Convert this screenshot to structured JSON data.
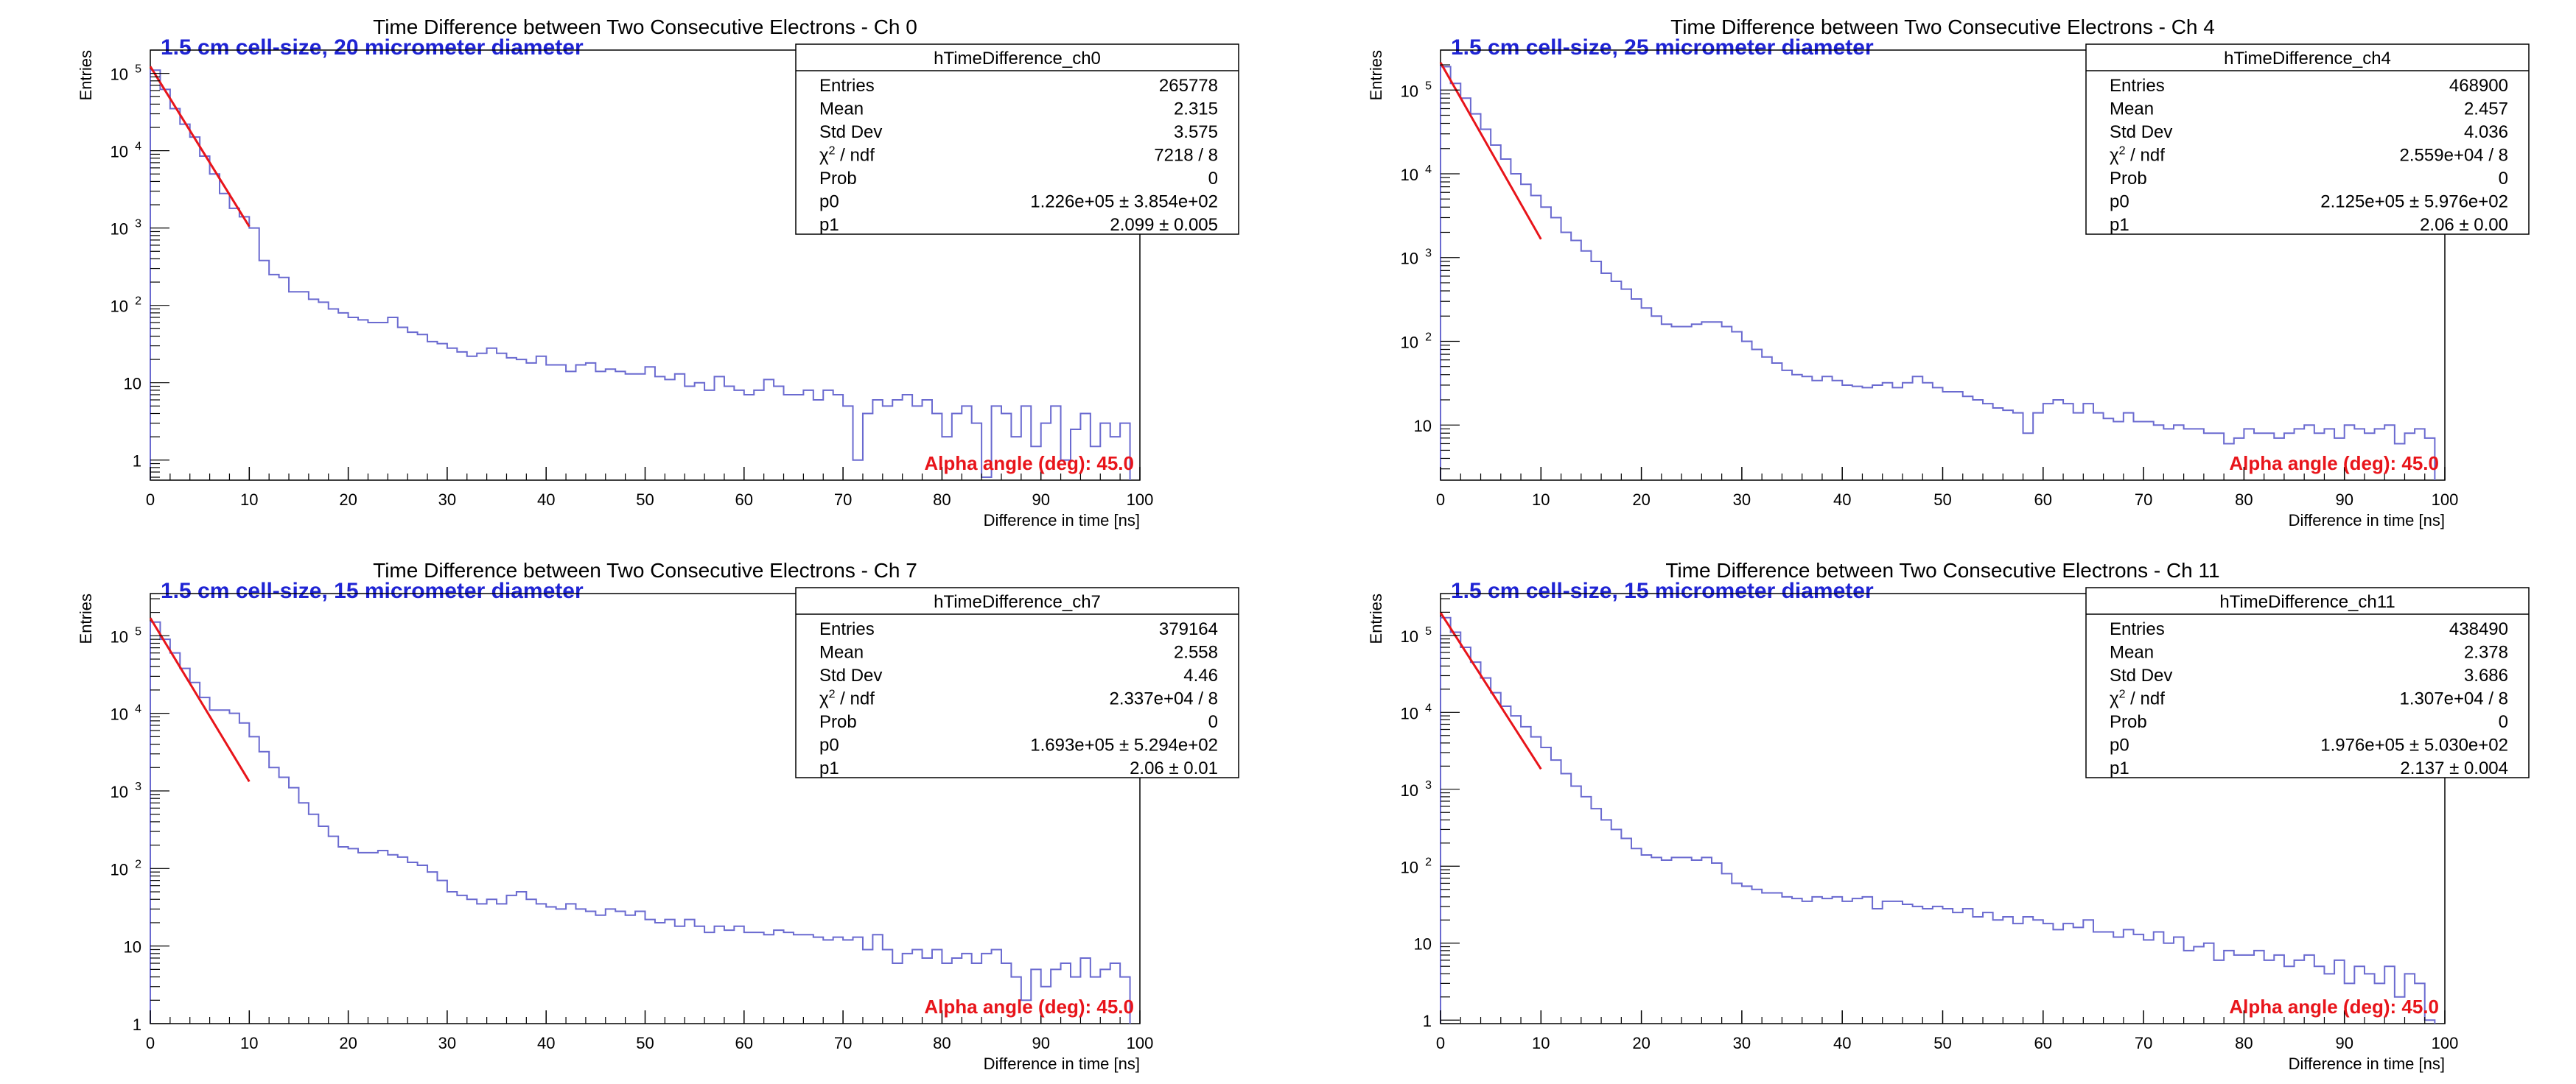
{
  "chart_data": [
    {
      "type": "histogram",
      "title": "Time Difference between Two Consecutive Electrons - Ch 0",
      "subtitle": "1.5 cm cell-size, 20 micrometer diameter",
      "xlabel": "Difference in time [ns]",
      "ylabel": "Entries",
      "xlim": [
        0,
        100
      ],
      "ylim": [
        0.55,
        200000
      ],
      "yscale": "log",
      "x_ticks": [
        "0",
        "10",
        "20",
        "30",
        "40",
        "50",
        "60",
        "70",
        "80",
        "90",
        "100"
      ],
      "y_ticks": [
        {
          "v": 1,
          "label": "1"
        },
        {
          "v": 10,
          "label": "10"
        },
        {
          "v": 100,
          "label": "10",
          "exp": "2"
        },
        {
          "v": 1000,
          "label": "10",
          "exp": "3"
        },
        {
          "v": 10000,
          "label": "10",
          "exp": "4"
        },
        {
          "v": 100000,
          "label": "10",
          "exp": "5"
        }
      ],
      "bin_width": 1,
      "values": [
        110000,
        62000,
        35000,
        22000,
        15000,
        8500,
        5000,
        2800,
        1800,
        1400,
        1000,
        380,
        250,
        230,
        150,
        150,
        120,
        110,
        90,
        80,
        70,
        65,
        60,
        60,
        70,
        52,
        45,
        42,
        34,
        32,
        28,
        25,
        22,
        24,
        28,
        24,
        21,
        20,
        18,
        22,
        17,
        17,
        14,
        17,
        18,
        14,
        15,
        14,
        13,
        13,
        16,
        12,
        11,
        13,
        9,
        10,
        8,
        12,
        9,
        8,
        7,
        8,
        11,
        9,
        7,
        7,
        8,
        6,
        8,
        7,
        5,
        1.0,
        4,
        6,
        5,
        6,
        7,
        5,
        6,
        4,
        2,
        4,
        5,
        3,
        0.6,
        5,
        4,
        2,
        5,
        1.5,
        3,
        5,
        1.0,
        2.5,
        4,
        1.5,
        3,
        2,
        3
      ],
      "fit": {
        "p0": 122600,
        "p1": 2.099,
        "x_range": [
          0,
          10
        ]
      },
      "stats": {
        "name": "hTimeDifference_ch0",
        "rows": [
          {
            "label": "Entries",
            "value": "265778"
          },
          {
            "label": "Mean",
            "value": "2.315"
          },
          {
            "label": "Std Dev",
            "value": "3.575"
          },
          {
            "label": "χ",
            "label_sup": "2",
            "label_rest": " / ndf",
            "value": "7218 / 8"
          },
          {
            "label": "Prob",
            "value": "0"
          },
          {
            "label": "p0",
            "value": "1.226e+05 ± 3.854e+02"
          },
          {
            "label": "p1",
            "value": "2.099 ± 0.005"
          }
        ]
      },
      "annotation": "Alpha angle (deg): 45.0",
      "colors": {
        "hist": "#6a6ad0",
        "fit": "#e8141a",
        "subtitle": "#1f24d4",
        "annotation": "#e8141a"
      }
    },
    {
      "type": "histogram",
      "title": "Time Difference between Two Consecutive Electrons - Ch 4",
      "subtitle": "1.5 cm cell-size, 25 micrometer diameter",
      "xlabel": "Difference in time [ns]",
      "ylabel": "Entries",
      "xlim": [
        0,
        100
      ],
      "ylim": [
        2.2,
        300000
      ],
      "yscale": "log",
      "x_ticks": [
        "0",
        "10",
        "20",
        "30",
        "40",
        "50",
        "60",
        "70",
        "80",
        "90",
        "100"
      ],
      "y_ticks": [
        {
          "v": 10,
          "label": "10"
        },
        {
          "v": 100,
          "label": "10",
          "exp": "2"
        },
        {
          "v": 1000,
          "label": "10",
          "exp": "3"
        },
        {
          "v": 10000,
          "label": "10",
          "exp": "4"
        },
        {
          "v": 100000,
          "label": "10",
          "exp": "5"
        }
      ],
      "bin_width": 1,
      "values": [
        190000,
        120000,
        80000,
        52000,
        34000,
        22000,
        15000,
        10000,
        7500,
        5500,
        4000,
        3000,
        2000,
        1600,
        1200,
        900,
        650,
        520,
        420,
        320,
        250,
        200,
        160,
        150,
        150,
        160,
        170,
        170,
        150,
        130,
        100,
        80,
        65,
        55,
        45,
        40,
        38,
        34,
        38,
        34,
        30,
        29,
        28,
        30,
        32,
        28,
        32,
        38,
        32,
        28,
        25,
        25,
        22,
        20,
        18,
        16,
        15,
        14,
        8,
        14,
        18,
        20,
        18,
        14,
        18,
        14,
        12,
        11,
        14,
        11,
        11,
        10,
        9,
        10,
        9,
        9,
        8,
        8,
        6,
        7,
        9,
        8,
        8,
        7,
        8,
        9,
        10,
        8,
        9,
        7,
        10,
        9,
        8,
        9,
        10,
        6,
        8,
        9,
        7
      ],
      "fit": {
        "p0": 212500,
        "p1": 2.06,
        "x_range": [
          0,
          10
        ]
      },
      "stats": {
        "name": "hTimeDifference_ch4",
        "rows": [
          {
            "label": "Entries",
            "value": "468900"
          },
          {
            "label": "Mean",
            "value": "2.457"
          },
          {
            "label": "Std Dev",
            "value": "4.036"
          },
          {
            "label": "χ",
            "label_sup": "2",
            "label_rest": " / ndf",
            "value": "2.559e+04 / 8"
          },
          {
            "label": "Prob",
            "value": "0"
          },
          {
            "label": "p0",
            "value": "2.125e+05 ± 5.976e+02"
          },
          {
            "label": "p1",
            "value": "2.06 ± 0.00"
          }
        ]
      },
      "annotation": "Alpha angle (deg): 45.0",
      "colors": {
        "hist": "#6a6ad0",
        "fit": "#e8141a",
        "subtitle": "#1f24d4",
        "annotation": "#e8141a"
      }
    },
    {
      "type": "histogram",
      "title": "Time Difference between Two Consecutive Electrons - Ch 7",
      "subtitle": "1.5 cm cell-size, 15 micrometer diameter",
      "xlabel": "Difference in time [ns]",
      "ylabel": "Entries",
      "xlim": [
        0,
        100
      ],
      "ylim": [
        1,
        350000
      ],
      "yscale": "log",
      "x_ticks": [
        "0",
        "10",
        "20",
        "30",
        "40",
        "50",
        "60",
        "70",
        "80",
        "90",
        "100"
      ],
      "y_ticks": [
        {
          "v": 1,
          "label": "1"
        },
        {
          "v": 10,
          "label": "10"
        },
        {
          "v": 100,
          "label": "10",
          "exp": "2"
        },
        {
          "v": 1000,
          "label": "10",
          "exp": "3"
        },
        {
          "v": 10000,
          "label": "10",
          "exp": "4"
        },
        {
          "v": 100000,
          "label": "10",
          "exp": "5"
        }
      ],
      "bin_width": 1,
      "values": [
        150000,
        90000,
        60000,
        38000,
        25000,
        16000,
        11000,
        11000,
        10000,
        7500,
        5000,
        3200,
        2000,
        1500,
        1100,
        700,
        500,
        350,
        260,
        190,
        180,
        160,
        160,
        170,
        150,
        140,
        120,
        110,
        90,
        70,
        50,
        45,
        40,
        35,
        40,
        35,
        45,
        50,
        40,
        35,
        32,
        30,
        35,
        30,
        28,
        25,
        30,
        28,
        25,
        28,
        22,
        20,
        22,
        18,
        22,
        18,
        15,
        18,
        16,
        18,
        15,
        15,
        14,
        16,
        15,
        14,
        14,
        13,
        12,
        13,
        12,
        13,
        9,
        14,
        9,
        6,
        8,
        9,
        7,
        9,
        6,
        7,
        8,
        6,
        8,
        9,
        6,
        4,
        2,
        5,
        3,
        5,
        6,
        4,
        7,
        4,
        5,
        6,
        4
      ],
      "fit": {
        "p0": 169300,
        "p1": 2.06,
        "x_range": [
          0,
          10
        ]
      },
      "stats": {
        "name": "hTimeDifference_ch7",
        "rows": [
          {
            "label": "Entries",
            "value": "379164"
          },
          {
            "label": "Mean",
            "value": "2.558"
          },
          {
            "label": "Std Dev",
            "value": "4.46"
          },
          {
            "label": "χ",
            "label_sup": "2",
            "label_rest": " / ndf",
            "value": "2.337e+04 / 8"
          },
          {
            "label": "Prob",
            "value": "0"
          },
          {
            "label": "p0",
            "value": "1.693e+05 ± 5.294e+02"
          },
          {
            "label": "p1",
            "value": "2.06 ± 0.01"
          }
        ]
      },
      "annotation": "Alpha angle (deg): 45.0",
      "colors": {
        "hist": "#6a6ad0",
        "fit": "#e8141a",
        "subtitle": "#1f24d4",
        "annotation": "#e8141a"
      }
    },
    {
      "type": "histogram",
      "title": "Time Difference between Two Consecutive Electrons - Ch 11",
      "subtitle": "1.5 cm cell-size, 15 micrometer diameter",
      "xlabel": "Difference in time [ns]",
      "ylabel": "Entries",
      "xlim": [
        0,
        100
      ],
      "ylim": [
        0.9,
        350000
      ],
      "yscale": "log",
      "x_ticks": [
        "0",
        "10",
        "20",
        "30",
        "40",
        "50",
        "60",
        "70",
        "80",
        "90",
        "100"
      ],
      "y_ticks": [
        {
          "v": 1,
          "label": "1"
        },
        {
          "v": 10,
          "label": "10"
        },
        {
          "v": 100,
          "label": "10",
          "exp": "2"
        },
        {
          "v": 1000,
          "label": "10",
          "exp": "3"
        },
        {
          "v": 10000,
          "label": "10",
          "exp": "4"
        },
        {
          "v": 100000,
          "label": "10",
          "exp": "5"
        }
      ],
      "bin_width": 1,
      "values": [
        170000,
        110000,
        70000,
        45000,
        28000,
        18000,
        12000,
        9000,
        6500,
        4800,
        3500,
        2400,
        1600,
        1100,
        800,
        560,
        400,
        300,
        230,
        170,
        140,
        130,
        120,
        130,
        130,
        120,
        130,
        110,
        80,
        60,
        55,
        50,
        45,
        45,
        40,
        38,
        35,
        40,
        38,
        40,
        35,
        38,
        40,
        28,
        35,
        35,
        32,
        30,
        28,
        30,
        28,
        25,
        28,
        22,
        25,
        20,
        22,
        18,
        22,
        20,
        18,
        15,
        18,
        16,
        20,
        14,
        14,
        12,
        15,
        13,
        11,
        14,
        10,
        12,
        8,
        9,
        10,
        6,
        8,
        7,
        7,
        8,
        6,
        7,
        5,
        6,
        7,
        5,
        4,
        6,
        3,
        5,
        4,
        3,
        5,
        2,
        4,
        3,
        1
      ],
      "fit": {
        "p0": 197600,
        "p1": 2.137,
        "x_range": [
          0,
          10
        ]
      },
      "stats": {
        "name": "hTimeDifference_ch11",
        "rows": [
          {
            "label": "Entries",
            "value": "438490"
          },
          {
            "label": "Mean",
            "value": "2.378"
          },
          {
            "label": "Std Dev",
            "value": "3.686"
          },
          {
            "label": "χ",
            "label_sup": "2",
            "label_rest": " / ndf",
            "value": "1.307e+04 / 8"
          },
          {
            "label": "Prob",
            "value": "0"
          },
          {
            "label": "p0",
            "value": "1.976e+05 ± 5.030e+02"
          },
          {
            "label": "p1",
            "value": "2.137 ± 0.004"
          }
        ]
      },
      "annotation": "Alpha angle (deg): 45.0",
      "colors": {
        "hist": "#6a6ad0",
        "fit": "#e8141a",
        "subtitle": "#1f24d4",
        "annotation": "#e8141a"
      }
    }
  ]
}
